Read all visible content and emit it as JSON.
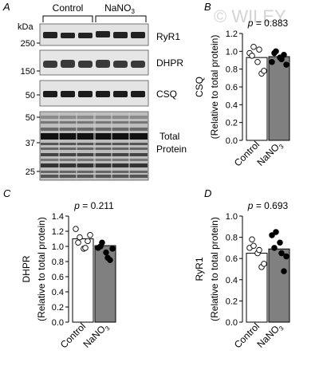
{
  "watermark": "© WILEY",
  "panels": {
    "A": {
      "letter": "A"
    },
    "B": {
      "letter": "B"
    },
    "C": {
      "letter": "C"
    },
    "D": {
      "letter": "D"
    }
  },
  "blot": {
    "kda_label": "kDa",
    "groups": [
      "Control",
      "NaNO3"
    ],
    "lanes_per_group": 3,
    "markers_top": [
      "250",
      "150",
      "50"
    ],
    "markers_total": [
      "50",
      "37",
      "25"
    ],
    "rows": [
      {
        "label": "RyR1"
      },
      {
        "label": "DHPR"
      },
      {
        "label": "CSQ"
      },
      {
        "label_line1": "Total",
        "label_line2": "Protein"
      }
    ]
  },
  "chart_data": [
    {
      "panel": "B",
      "type": "bar",
      "categories": [
        "Control",
        "NaNO3"
      ],
      "values": [
        0.93,
        0.94
      ],
      "points": [
        [
          0.98,
          1.05,
          0.88,
          0.75,
          0.78,
          0.95,
          1.02
        ],
        [
          0.88,
          1.0,
          0.93,
          0.96,
          0.85,
          0.98,
          0.91
        ]
      ],
      "point_fill": [
        "#ffffff",
        "#000000"
      ],
      "bar_fill": [
        "#ffffff",
        "#808080"
      ],
      "annotation": "p = 0.883",
      "ylabel_line1": "CSQ",
      "ylabel_line2": "(Relative to total protein)",
      "ylim": [
        0,
        1.2
      ],
      "yticks": [
        "0.0",
        "0.2",
        "0.4",
        "0.6",
        "0.8",
        "1.0",
        "1.2"
      ]
    },
    {
      "panel": "C",
      "type": "bar",
      "categories": [
        "Control",
        "NaNO3"
      ],
      "values": [
        1.1,
        1.01
      ],
      "points": [
        [
          1.23,
          1.12,
          0.97,
          1.07,
          1.15,
          1.05,
          0.98
        ],
        [
          0.98,
          1.05,
          0.92,
          0.82,
          0.97,
          1.0,
          0.85
        ]
      ],
      "point_fill": [
        "#ffffff",
        "#000000"
      ],
      "bar_fill": [
        "#ffffff",
        "#808080"
      ],
      "annotation": "p = 0.211",
      "ylabel_line1": "DHPR",
      "ylabel_line2": "(Relative to total protein)",
      "ylim": [
        0,
        1.4
      ],
      "yticks": [
        "0.0",
        "0.2",
        "0.4",
        "0.6",
        "0.8",
        "1.0",
        "1.2",
        "1.4"
      ]
    },
    {
      "panel": "D",
      "type": "bar",
      "categories": [
        "Control",
        "NaNO3"
      ],
      "values": [
        0.65,
        0.69
      ],
      "points": [
        [
          0.7,
          0.72,
          0.65,
          0.52,
          0.55,
          0.78,
          0.68
        ],
        [
          0.82,
          0.85,
          0.75,
          0.48,
          0.62,
          0.7,
          0.65
        ]
      ],
      "point_fill": [
        "#ffffff",
        "#000000"
      ],
      "bar_fill": [
        "#ffffff",
        "#808080"
      ],
      "annotation": "p = 0.693",
      "ylabel_line1": "RyR1",
      "ylabel_line2": "(Relative to total protein)",
      "ylim": [
        0,
        1.0
      ],
      "yticks": [
        "0.0",
        "0.2",
        "0.4",
        "0.6",
        "0.8",
        "1.0"
      ]
    }
  ]
}
